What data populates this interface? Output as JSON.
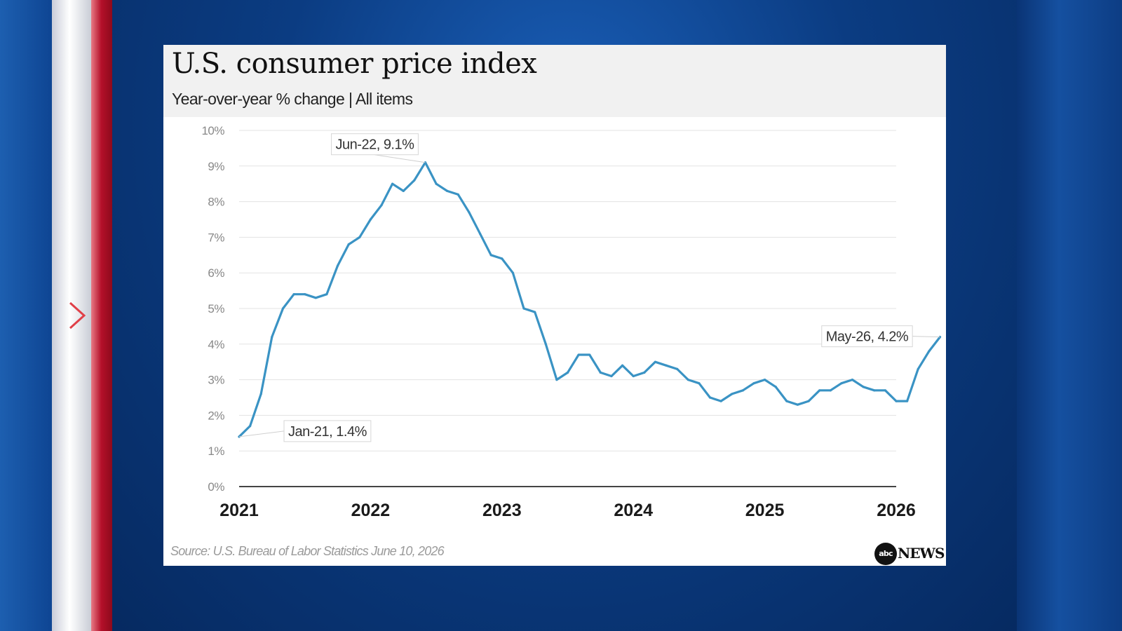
{
  "chart_data": {
    "type": "line",
    "title": "U.S. consumer price index",
    "subtitle": "Year-over-year % change | All items",
    "source": "Source: U.S. Bureau of Labor Statistics June 10, 2026",
    "brand": {
      "logo_text": "abc",
      "name": "NEWS"
    },
    "ylim": [
      0,
      10
    ],
    "y_ticks": [
      "0%",
      "1%",
      "2%",
      "3%",
      "4%",
      "5%",
      "6%",
      "7%",
      "8%",
      "9%",
      "10%"
    ],
    "x_ticks": [
      "2021",
      "2022",
      "2023",
      "2024",
      "2025",
      "2026"
    ],
    "grid": true,
    "line_color": "#3a93c4",
    "series": [
      {
        "x": [
          "2021-01",
          "2021-02",
          "2021-03",
          "2021-04",
          "2021-05",
          "2021-06",
          "2021-07",
          "2021-08",
          "2021-09",
          "2021-10",
          "2021-11",
          "2021-12",
          "2022-01",
          "2022-02",
          "2022-03",
          "2022-04",
          "2022-05",
          "2022-06",
          "2022-07",
          "2022-08",
          "2022-09",
          "2022-10",
          "2022-11",
          "2022-12",
          "2023-01",
          "2023-02",
          "2023-03",
          "2023-04",
          "2023-05",
          "2023-06",
          "2023-07",
          "2023-08",
          "2023-09",
          "2023-10",
          "2023-11",
          "2023-12",
          "2024-01",
          "2024-02",
          "2024-03",
          "2024-04",
          "2024-05",
          "2024-06",
          "2024-07",
          "2024-08",
          "2024-09",
          "2024-10",
          "2024-11",
          "2024-12",
          "2025-01",
          "2025-02",
          "2025-03",
          "2025-04",
          "2025-05",
          "2025-06",
          "2025-07",
          "2025-08",
          "2025-09",
          "2025-10",
          "2025-11",
          "2025-12",
          "2026-01",
          "2026-02",
          "2026-03",
          "2026-04",
          "2026-05"
        ],
        "values": [
          1.4,
          1.7,
          2.6,
          4.2,
          5.0,
          5.4,
          5.4,
          5.3,
          5.4,
          6.2,
          6.8,
          7.0,
          7.5,
          7.9,
          8.5,
          8.3,
          8.6,
          9.1,
          8.5,
          8.3,
          8.2,
          7.7,
          7.1,
          6.5,
          6.4,
          6.0,
          5.0,
          4.9,
          4.0,
          3.0,
          3.2,
          3.7,
          3.7,
          3.2,
          3.1,
          3.4,
          3.1,
          3.2,
          3.5,
          3.4,
          3.3,
          3.0,
          2.9,
          2.5,
          2.4,
          2.6,
          2.7,
          2.9,
          3.0,
          2.8,
          2.4,
          2.3,
          2.4,
          2.7,
          2.7,
          2.9,
          3.0,
          2.8,
          2.7,
          2.7,
          2.4,
          2.4,
          3.3,
          3.8,
          4.2
        ]
      }
    ],
    "annotations": [
      {
        "x": "2021-01",
        "y": 1.4,
        "label": "Jan-21, 1.4%"
      },
      {
        "x": "2022-06",
        "y": 9.1,
        "label": "Jun-22, 9.1%"
      },
      {
        "x": "2026-05",
        "y": 4.2,
        "label": "May-26, 4.2%"
      }
    ]
  }
}
